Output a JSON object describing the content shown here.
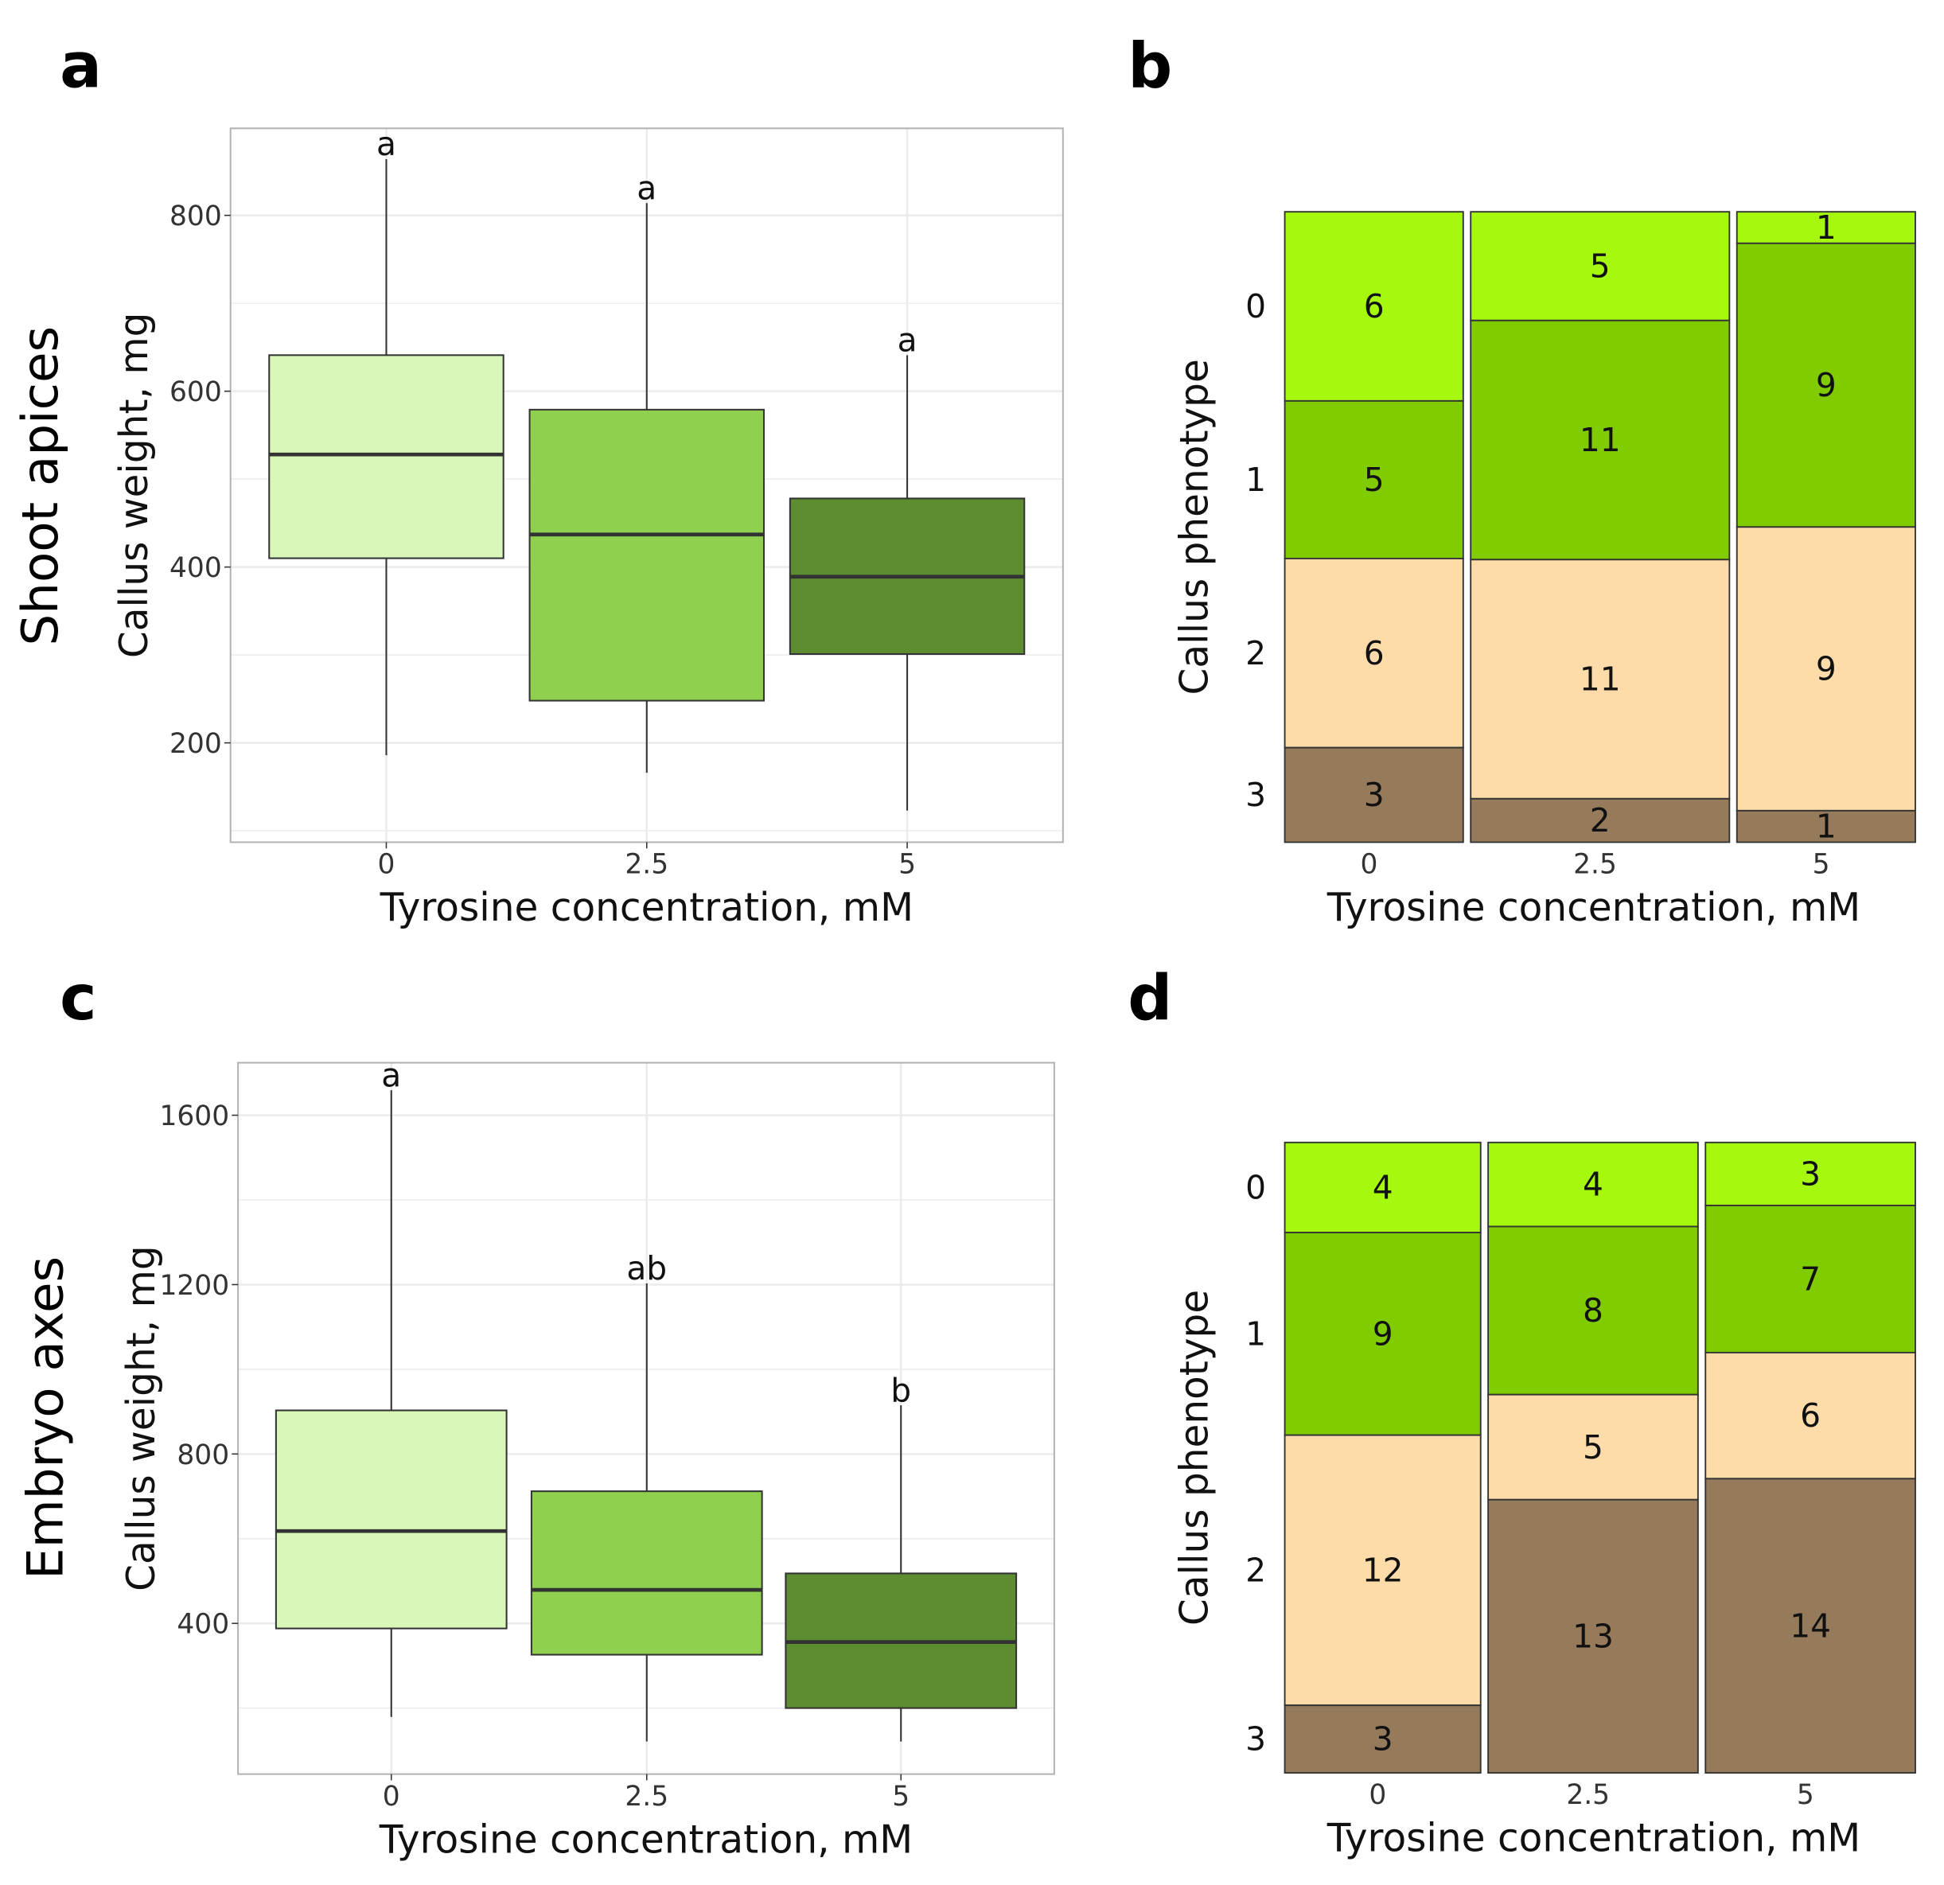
{
  "panel_letters": [
    "a",
    "b",
    "c",
    "d"
  ],
  "row_labels": [
    "Shoot apices",
    "Embryo axes"
  ],
  "colors": {
    "box": [
      "#d9f7b8",
      "#8fd14f",
      "#5e8c31"
    ],
    "phenotype": [
      "#a6f80f",
      "#80cc00",
      "#fddcaa",
      "#957a5b"
    ],
    "grid": "#ebebeb",
    "frame": "#b3b3b3"
  },
  "chart_data": [
    {
      "panel": "a",
      "type": "box",
      "xlabel": "Tyrosine concentration, mM",
      "ylabel": "Callus weight, mg",
      "categories": [
        "0",
        "2.5",
        "5"
      ],
      "yticks": [
        200,
        400,
        600,
        800
      ],
      "ylim": [
        87,
        899
      ],
      "grid": true,
      "boxes": [
        {
          "whisker_low": 186,
          "q1": 410,
          "median": 528,
          "q3": 641,
          "whisker_high": 864,
          "letter": "a"
        },
        {
          "whisker_low": 166,
          "q1": 248,
          "median": 437,
          "q3": 579,
          "whisker_high": 814,
          "letter": "a"
        },
        {
          "whisker_low": 123,
          "q1": 301,
          "median": 389,
          "q3": 478,
          "whisker_high": 641,
          "letter": "a"
        }
      ]
    },
    {
      "panel": "b",
      "type": "mosaic",
      "xlabel": "Tyrosine concentration, mM",
      "ylabel": "Callus phenotype",
      "categories": [
        "0",
        "2.5",
        "5"
      ],
      "phenotypes": [
        "0",
        "1",
        "2",
        "3"
      ],
      "counts": [
        [
          6,
          5,
          6,
          3
        ],
        [
          5,
          11,
          11,
          2
        ],
        [
          1,
          9,
          9,
          1
        ]
      ]
    },
    {
      "panel": "c",
      "type": "box",
      "xlabel": "Tyrosine concentration, mM",
      "ylabel": "Callus weight, mg",
      "categories": [
        "0",
        "2.5",
        "5"
      ],
      "yticks": [
        400,
        800,
        1200,
        1600
      ],
      "ylim": [
        44,
        1724
      ],
      "grid": true,
      "boxes": [
        {
          "whisker_low": 179,
          "q1": 388,
          "median": 618,
          "q3": 903,
          "whisker_high": 1659,
          "letter": "a"
        },
        {
          "whisker_low": 121,
          "q1": 326,
          "median": 479,
          "q3": 712,
          "whisker_high": 1203,
          "letter": "ab"
        },
        {
          "whisker_low": 121,
          "q1": 200,
          "median": 356,
          "q3": 518,
          "whisker_high": 915,
          "letter": "b"
        }
      ]
    },
    {
      "panel": "d",
      "type": "mosaic",
      "xlabel": "Tyrosine concentration, mM",
      "ylabel": "Callus phenotype",
      "categories": [
        "0",
        "2.5",
        "5"
      ],
      "phenotypes": [
        "0",
        "1",
        "2",
        "3"
      ],
      "counts": [
        [
          4,
          9,
          12,
          3
        ],
        [
          4,
          8,
          5,
          13
        ],
        [
          3,
          7,
          6,
          14
        ]
      ]
    }
  ]
}
